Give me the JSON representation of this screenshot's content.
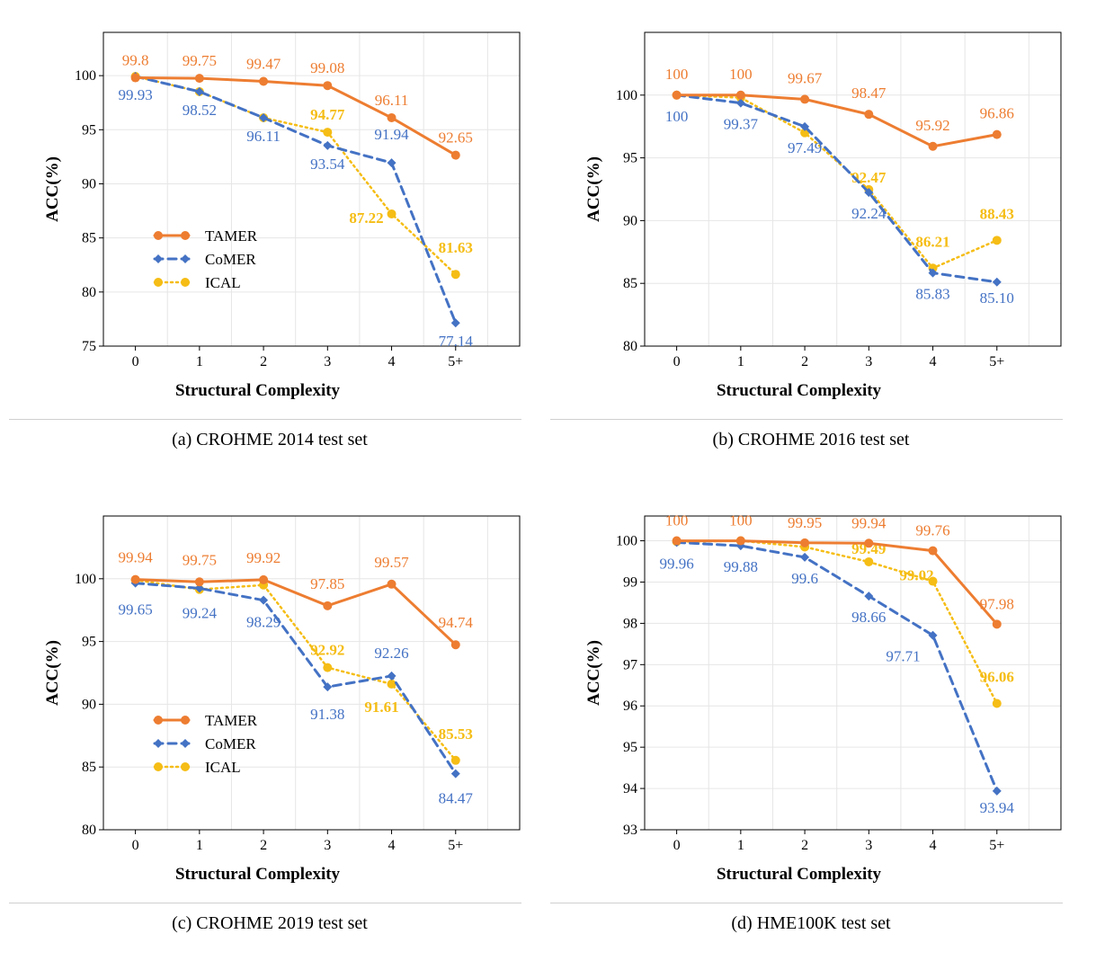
{
  "colors": {
    "TAMER": "#ED7D31",
    "CoMER": "#4472C4",
    "ICAL": "#F5BD15"
  },
  "chart_data": [
    {
      "type": "line",
      "caption": "(a)  CROHME 2014 test set",
      "xlabel": "Structural Complexity",
      "ylabel": "ACC(%)",
      "categories": [
        "0",
        "1",
        "2",
        "3",
        "4",
        "5+"
      ],
      "yticks": [
        75,
        80,
        85,
        90,
        95,
        100
      ],
      "ylim": [
        75,
        104
      ],
      "legend": "middle-left",
      "series": [
        {
          "name": "TAMER",
          "values": [
            99.8,
            99.75,
            99.47,
            99.08,
            96.11,
            92.65
          ],
          "labels": [
            "99.8",
            "99.75",
            "99.47",
            "99.08",
            "96.11",
            "92.65"
          ]
        },
        {
          "name": "CoMER",
          "values": [
            99.93,
            98.52,
            96.11,
            93.54,
            91.94,
            77.14
          ],
          "labels": [
            "99.93",
            "98.52",
            "96.11",
            "93.54",
            "91.94",
            "77.14"
          ]
        },
        {
          "name": "ICAL",
          "values": [
            99.93,
            98.52,
            96.11,
            94.77,
            87.22,
            81.63
          ],
          "labels": [
            "",
            "",
            "",
            "94.77",
            "87.22",
            "81.63"
          ]
        }
      ]
    },
    {
      "type": "line",
      "caption": "(b)  CROHME 2016 test set",
      "xlabel": "Structural Complexity",
      "ylabel": "ACC(%)",
      "categories": [
        "0",
        "1",
        "2",
        "3",
        "4",
        "5+"
      ],
      "yticks": [
        80,
        85,
        90,
        95,
        100
      ],
      "ylim": [
        80,
        105
      ],
      "legend": "middle-left",
      "series": [
        {
          "name": "TAMER",
          "values": [
            100,
            100,
            99.67,
            98.47,
            95.92,
            96.86
          ],
          "labels": [
            "100",
            "100",
            "99.67",
            "98.47",
            "95.92",
            "96.86"
          ]
        },
        {
          "name": "CoMER",
          "values": [
            100,
            99.37,
            97.49,
            92.24,
            85.83,
            85.1
          ],
          "labels": [
            "100",
            "99.37",
            "97.49",
            "92.24",
            "85.83",
            "85.10"
          ]
        },
        {
          "name": "ICAL",
          "values": [
            100,
            99.8,
            97.0,
            92.47,
            86.21,
            88.43
          ],
          "labels": [
            "",
            "",
            "",
            "92.47",
            "86.21",
            "88.43"
          ]
        }
      ]
    },
    {
      "type": "line",
      "caption": "(c)  CROHME 2019 test set",
      "xlabel": "Structural Complexity",
      "ylabel": "ACC(%)",
      "categories": [
        "0",
        "1",
        "2",
        "3",
        "4",
        "5+"
      ],
      "yticks": [
        80,
        85,
        90,
        95,
        100
      ],
      "ylim": [
        80,
        105
      ],
      "legend": "middle-left",
      "series": [
        {
          "name": "TAMER",
          "values": [
            99.94,
            99.75,
            99.92,
            97.85,
            99.57,
            94.74
          ],
          "labels": [
            "99.94",
            "99.75",
            "99.92",
            "97.85",
            "99.57",
            "94.74"
          ]
        },
        {
          "name": "CoMER",
          "values": [
            99.65,
            99.24,
            98.29,
            91.38,
            92.26,
            84.47
          ],
          "labels": [
            "99.65",
            "99.24",
            "98.29",
            "91.38",
            "92.26",
            "84.47"
          ]
        },
        {
          "name": "ICAL",
          "values": [
            99.9,
            99.15,
            99.5,
            92.92,
            91.61,
            85.53
          ],
          "labels": [
            "",
            "",
            "",
            "92.92",
            "91.61",
            "85.53"
          ]
        }
      ]
    },
    {
      "type": "line",
      "caption": "(d)  HME100K test set",
      "xlabel": "Structural Complexity",
      "ylabel": "ACC(%)",
      "categories": [
        "0",
        "1",
        "2",
        "3",
        "4",
        "5+"
      ],
      "yticks": [
        93,
        94,
        95,
        96,
        97,
        98,
        99,
        100
      ],
      "ylim": [
        93,
        100.6
      ],
      "legend": "middle-left",
      "series": [
        {
          "name": "TAMER",
          "values": [
            100,
            100,
            99.95,
            99.94,
            99.76,
            97.98
          ],
          "labels": [
            "100",
            "100",
            "99.95",
            "99.94",
            "99.76",
            "97.98"
          ]
        },
        {
          "name": "CoMER",
          "values": [
            99.96,
            99.88,
            99.6,
            98.66,
            97.71,
            93.94
          ],
          "labels": [
            "99.96",
            "99.88",
            "99.6",
            "98.66",
            "97.71",
            "93.94"
          ]
        },
        {
          "name": "ICAL",
          "values": [
            99.98,
            100,
            99.85,
            99.49,
            99.02,
            96.06
          ],
          "labels": [
            "",
            "",
            "",
            "99.49",
            "99.02",
            "96.06"
          ]
        }
      ]
    }
  ]
}
